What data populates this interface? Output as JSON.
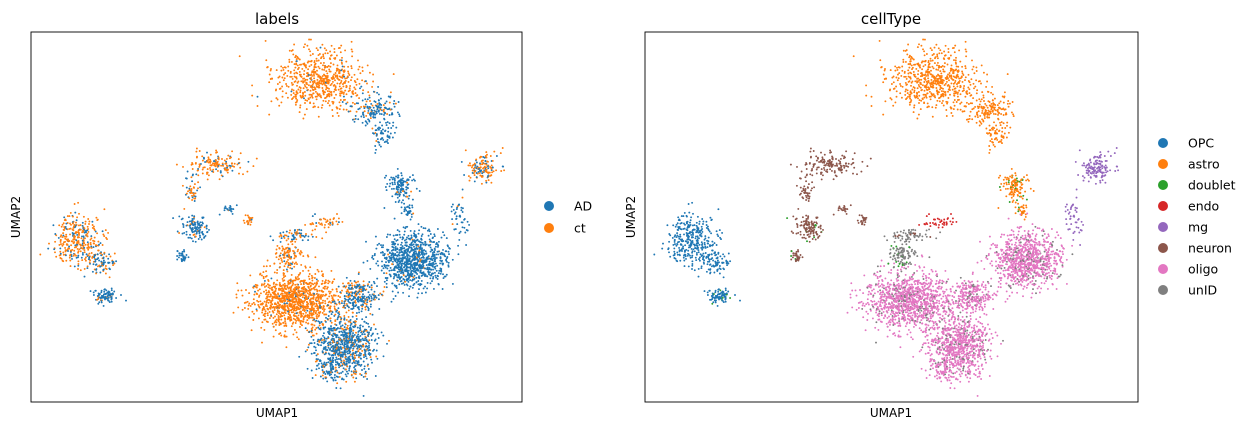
{
  "chart_data": [
    {
      "type": "scatter",
      "title": "labels",
      "xlabel": "UMAP1",
      "ylabel": "UMAP2",
      "grid": false,
      "ticks": false,
      "legend_position": "right",
      "series": [
        {
          "name": "AD",
          "color": "#1f77b4"
        },
        {
          "name": "ct",
          "color": "#ff7f0e"
        }
      ]
    },
    {
      "type": "scatter",
      "title": "cellType",
      "xlabel": "UMAP1",
      "ylabel": "UMAP2",
      "grid": false,
      "ticks": false,
      "legend_position": "right",
      "series": [
        {
          "name": "OPC",
          "color": "#1f77b4"
        },
        {
          "name": "astro",
          "color": "#ff7f0e"
        },
        {
          "name": "doublet",
          "color": "#2ca02c"
        },
        {
          "name": "endo",
          "color": "#d62728"
        },
        {
          "name": "mg",
          "color": "#9467bd"
        },
        {
          "name": "neuron",
          "color": "#8c564b"
        },
        {
          "name": "oligo",
          "color": "#e377c2"
        },
        {
          "name": "unID",
          "color": "#7f7f7f"
        }
      ]
    }
  ]
}
